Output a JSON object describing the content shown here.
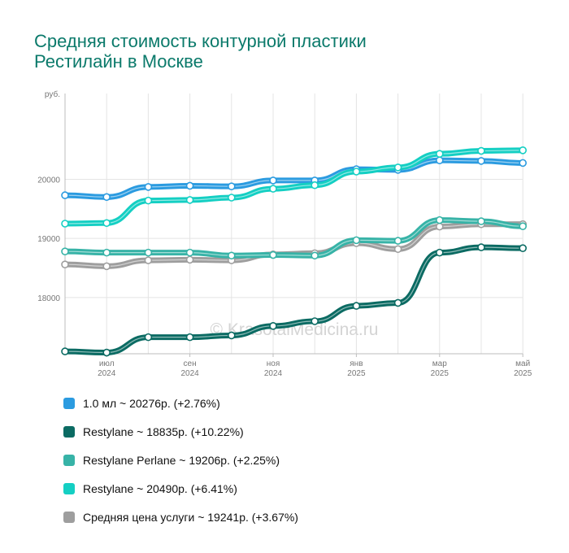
{
  "title": {
    "line1": "Средняя стоимость контурной пластики",
    "line2": "Рестилайн в Москве"
  },
  "watermark": "© KrasotaiMedicina.ru",
  "chart_data": {
    "type": "line",
    "ylabel": "руб.",
    "ylim": [
      17050,
      21450
    ],
    "yticks": [
      18000,
      19000,
      20000
    ],
    "x_labels": [
      {
        "index": 1,
        "month": "июл",
        "year": "2024"
      },
      {
        "index": 3,
        "month": "сен",
        "year": "2024"
      },
      {
        "index": 5,
        "month": "ноя",
        "year": "2024"
      },
      {
        "index": 7,
        "month": "янв",
        "year": "2025"
      },
      {
        "index": 9,
        "month": "мар",
        "year": "2025"
      },
      {
        "index": 11,
        "month": "май",
        "year": "2025"
      }
    ],
    "grid": true,
    "legend_position": "bottom",
    "series": [
      {
        "name": "1.0 мл",
        "legend": "1.0 мл ~ 20276р. (+2.76%)",
        "color": "#2b9be0",
        "values": [
          19730,
          19700,
          19870,
          19890,
          19880,
          19980,
          19980,
          20170,
          20160,
          20320,
          20310,
          20276
        ]
      },
      {
        "name": "Restylane",
        "legend": "Restylane ~ 18835р. (+10.22%)",
        "color": "#0b6b63",
        "values": [
          17090,
          17070,
          17330,
          17330,
          17360,
          17520,
          17600,
          17860,
          17910,
          18760,
          18850,
          18835
        ]
      },
      {
        "name": "Restylane Perlane",
        "legend": "Restylane Perlane ~ 19206р. (+2.25%)",
        "color": "#37b3a7",
        "values": [
          18780,
          18760,
          18760,
          18760,
          18710,
          18720,
          18710,
          18970,
          18960,
          19310,
          19290,
          19206
        ]
      },
      {
        "name": "Restylane",
        "legend": "Restylane ~ 20490р. (+6.41%)",
        "color": "#14cfc3",
        "values": [
          19250,
          19260,
          19640,
          19650,
          19690,
          19840,
          19900,
          20130,
          20200,
          20430,
          20480,
          20490
        ]
      },
      {
        "name": "Средняя цена услуги",
        "legend": "Средняя цена услуги ~ 19241р. (+3.67%)",
        "color": "#9e9e9e",
        "values": [
          18560,
          18530,
          18630,
          18640,
          18630,
          18730,
          18750,
          18920,
          18820,
          19200,
          19240,
          19241
        ]
      }
    ]
  }
}
